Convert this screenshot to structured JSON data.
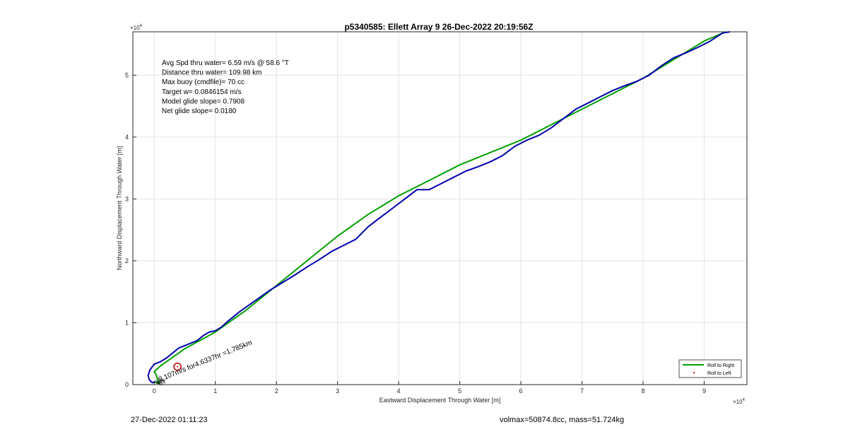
{
  "chart_data": {
    "type": "line",
    "title": "p5340585: Ellett Array 9 26-Dec-2022 20:19:56Z",
    "xlabel": "Eastward Displacement Through Water [m]",
    "ylabel": "Northward Displacement Through Water [m]",
    "x_multiplier": "×10",
    "y_multiplier": "×10",
    "multiplier_exponent": "4",
    "xlim": [
      -3500,
      97000
    ],
    "ylim": [
      0,
      57000
    ],
    "xticks": [
      0,
      10000,
      20000,
      30000,
      40000,
      50000,
      60000,
      70000,
      80000,
      90000
    ],
    "xtick_labels": [
      "0",
      "1",
      "2",
      "3",
      "4",
      "5",
      "6",
      "7",
      "8",
      "9"
    ],
    "yticks": [
      0,
      10000,
      20000,
      30000,
      40000,
      50000
    ],
    "ytick_labels": [
      "0",
      "1",
      "2",
      "3",
      "4",
      "5"
    ],
    "grid": true,
    "legend_position": "bottom-right",
    "series": [
      {
        "name": "Roll to Right",
        "color": "#00a000",
        "points": [
          [
            0,
            400
          ],
          [
            800,
            200
          ],
          [
            500,
            1000
          ],
          [
            300,
            1600
          ],
          [
            0,
            2100
          ],
          [
            1000,
            3000
          ],
          [
            5000,
            5800
          ],
          [
            10000,
            8500
          ],
          [
            15000,
            12000
          ],
          [
            20000,
            16000
          ],
          [
            25000,
            20000
          ],
          [
            30000,
            24000
          ],
          [
            35000,
            27500
          ],
          [
            40000,
            30500
          ],
          [
            45000,
            33000
          ],
          [
            50000,
            35500
          ],
          [
            55000,
            37500
          ],
          [
            60000,
            39500
          ],
          [
            65000,
            42000
          ],
          [
            70000,
            44500
          ],
          [
            75000,
            47000
          ],
          [
            80000,
            49500
          ],
          [
            85000,
            52500
          ],
          [
            90000,
            55500
          ],
          [
            93500,
            57000
          ]
        ]
      },
      {
        "name": "Roll to Left",
        "color": "#d00000",
        "points": [
          [
            3800,
            2900
          ]
        ]
      },
      {
        "name": "",
        "color": "#0000b0",
        "points": [
          [
            100,
            500
          ],
          [
            -300,
            300
          ],
          [
            -800,
            800
          ],
          [
            -1000,
            1500
          ],
          [
            -700,
            2400
          ],
          [
            0,
            3300
          ],
          [
            1000,
            3700
          ],
          [
            2000,
            4300
          ],
          [
            3000,
            5100
          ],
          [
            4000,
            5900
          ],
          [
            5000,
            6300
          ],
          [
            6000,
            6700
          ],
          [
            7000,
            7100
          ],
          [
            8000,
            7900
          ],
          [
            9000,
            8500
          ],
          [
            10000,
            8700
          ],
          [
            11000,
            9300
          ],
          [
            12000,
            10200
          ],
          [
            13000,
            11000
          ],
          [
            14000,
            11800
          ],
          [
            15000,
            12500
          ],
          [
            17000,
            13900
          ],
          [
            19000,
            15300
          ],
          [
            21000,
            16500
          ],
          [
            23000,
            17700
          ],
          [
            25000,
            19000
          ],
          [
            27000,
            20200
          ],
          [
            29000,
            21500
          ],
          [
            31000,
            22500
          ],
          [
            33000,
            23500
          ],
          [
            35000,
            25500
          ],
          [
            37000,
            27000
          ],
          [
            39000,
            28500
          ],
          [
            41000,
            30000
          ],
          [
            43000,
            31500
          ],
          [
            45000,
            31500
          ],
          [
            47000,
            32500
          ],
          [
            49000,
            33500
          ],
          [
            51000,
            34500
          ],
          [
            53000,
            35200
          ],
          [
            55000,
            36000
          ],
          [
            57000,
            37000
          ],
          [
            59000,
            38500
          ],
          [
            61000,
            39500
          ],
          [
            63000,
            40300
          ],
          [
            65000,
            41500
          ],
          [
            67000,
            43000
          ],
          [
            69000,
            44500
          ],
          [
            71000,
            45500
          ],
          [
            73000,
            46500
          ],
          [
            75000,
            47500
          ],
          [
            77000,
            48300
          ],
          [
            79000,
            49000
          ],
          [
            81000,
            50000
          ],
          [
            83000,
            51500
          ],
          [
            85000,
            52800
          ],
          [
            87000,
            53600
          ],
          [
            89000,
            54500
          ],
          [
            91000,
            55500
          ],
          [
            93000,
            56800
          ],
          [
            94200,
            57000
          ]
        ]
      }
    ],
    "legend": [
      "Roll to Right",
      "Roll to Left"
    ],
    "annotations": {
      "stats": [
        "Avg Spd thru water=  6.59 m/s @  58.6 °T",
        "Distance thru water= 109.98 km",
        "Max buoy (cmdfile)= 70 cc",
        "Target w= 0.0846154 m/s",
        "Model glide slope= 0.7908",
        "Net glide slope= 0.0180"
      ],
      "current_label": "0.107m/s for4.6337hr =1.785km",
      "current_label_anchor": [
        400,
        0
      ],
      "start_labels": [
        "0.8",
        "0.9",
        "0.3",
        "0.7"
      ],
      "marker": [
        3800,
        2900
      ]
    }
  },
  "footer": {
    "timestamp": "27-Dec-2022 01:11:23",
    "info": "volmax=50874.8cc, mass=51.724kg"
  }
}
